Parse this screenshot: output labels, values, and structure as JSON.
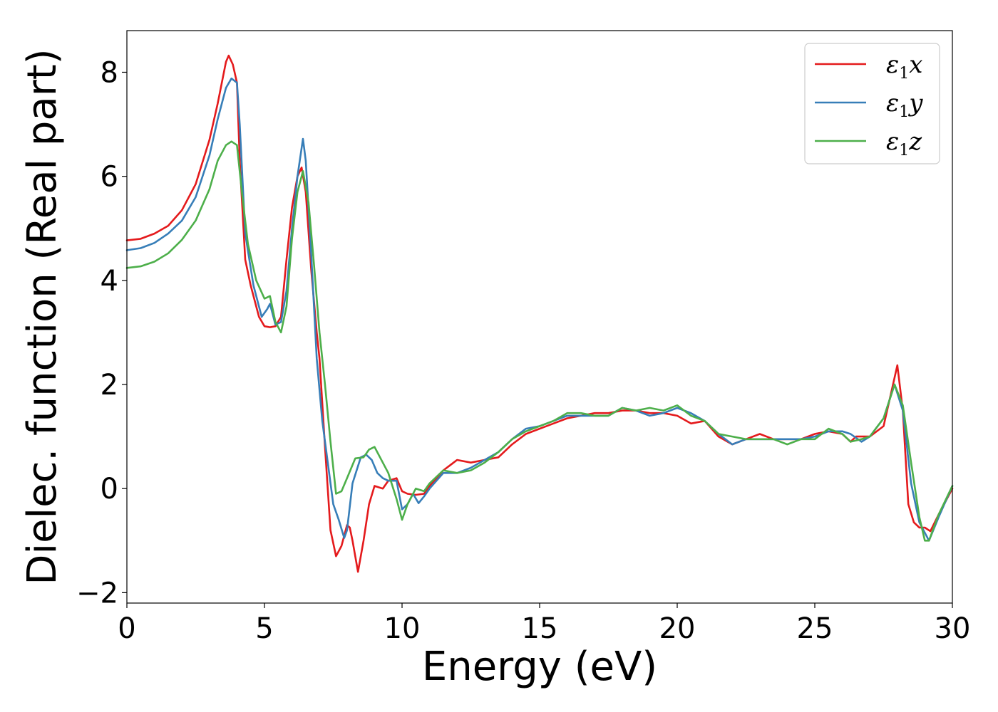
{
  "chart_data": {
    "type": "line",
    "title": "",
    "xlabel": "Energy (eV)",
    "ylabel": "Dielec. function (Real part)",
    "xlim": [
      0,
      30
    ],
    "ylim": [
      -2.2,
      8.8
    ],
    "x_ticks": [
      0,
      5,
      10,
      15,
      20,
      25,
      30
    ],
    "y_ticks": [
      -2,
      0,
      2,
      4,
      6,
      8
    ],
    "x_tick_labels": [
      "0",
      "5",
      "10",
      "15",
      "20",
      "25",
      "30"
    ],
    "y_tick_labels": [
      "−2",
      "0",
      "2",
      "4",
      "6",
      "8"
    ],
    "grid": false,
    "legend_position": "top-right",
    "series": [
      {
        "name": "ε1x",
        "legend_main": "ε",
        "legend_sub": "1",
        "legend_var": "x",
        "color": "#e41a1c",
        "x": [
          0,
          0.5,
          1,
          1.5,
          2,
          2.5,
          3,
          3.3,
          3.6,
          3.7,
          3.85,
          4.0,
          4.1,
          4.3,
          4.5,
          4.8,
          5.0,
          5.2,
          5.4,
          5.6,
          5.8,
          6.0,
          6.2,
          6.35,
          6.5,
          6.7,
          6.9,
          7.0,
          7.2,
          7.4,
          7.6,
          7.8,
          8.0,
          8.1,
          8.2,
          8.4,
          8.6,
          8.8,
          9.0,
          9.3,
          9.5,
          9.8,
          10.0,
          10.2,
          10.5,
          10.8,
          11.0,
          11.5,
          12.0,
          12.5,
          13.0,
          13.5,
          14.0,
          14.5,
          15.0,
          15.5,
          16.0,
          16.5,
          17.0,
          17.5,
          18.0,
          18.5,
          19.0,
          19.5,
          20.0,
          20.5,
          21.0,
          21.5,
          22.0,
          22.5,
          23.0,
          23.5,
          24.0,
          24.5,
          25.0,
          25.5,
          26.0,
          26.3,
          26.5,
          27.0,
          27.5,
          27.8,
          28.0,
          28.2,
          28.4,
          28.6,
          28.8,
          29.0,
          29.2,
          29.5,
          30.0
        ],
        "values": [
          4.77,
          4.8,
          4.9,
          5.05,
          5.35,
          5.85,
          6.7,
          7.4,
          8.2,
          8.32,
          8.15,
          7.8,
          6.3,
          4.4,
          3.9,
          3.3,
          3.12,
          3.1,
          3.12,
          3.3,
          4.4,
          5.4,
          6.0,
          6.17,
          5.7,
          4.2,
          3.0,
          2.5,
          0.8,
          -0.8,
          -1.3,
          -1.1,
          -0.7,
          -0.75,
          -1.0,
          -1.6,
          -1.0,
          -0.3,
          0.05,
          0.0,
          0.15,
          0.2,
          -0.05,
          -0.1,
          -0.12,
          -0.1,
          0.05,
          0.35,
          0.55,
          0.5,
          0.55,
          0.6,
          0.85,
          1.05,
          1.15,
          1.25,
          1.35,
          1.4,
          1.45,
          1.45,
          1.5,
          1.5,
          1.45,
          1.45,
          1.4,
          1.25,
          1.3,
          1.0,
          0.85,
          0.95,
          1.05,
          0.95,
          0.95,
          0.95,
          1.05,
          1.1,
          1.05,
          0.9,
          1.0,
          1.0,
          1.2,
          1.9,
          2.37,
          1.5,
          -0.3,
          -0.65,
          -0.75,
          -0.75,
          -0.82,
          -0.5,
          0.0
        ]
      },
      {
        "name": "ε1y",
        "legend_main": "ε",
        "legend_sub": "1",
        "legend_var": "y",
        "color": "#377eb8",
        "x": [
          0,
          0.5,
          1,
          1.5,
          2,
          2.5,
          3,
          3.3,
          3.6,
          3.8,
          4.0,
          4.1,
          4.3,
          4.6,
          4.9,
          5.1,
          5.2,
          5.4,
          5.6,
          5.8,
          6.0,
          6.2,
          6.4,
          6.5,
          6.7,
          6.9,
          7.1,
          7.3,
          7.5,
          7.7,
          7.9,
          8.0,
          8.2,
          8.5,
          8.7,
          8.9,
          9.1,
          9.3,
          9.5,
          9.8,
          10.0,
          10.2,
          10.4,
          10.6,
          10.8,
          11.0,
          11.5,
          12.0,
          12.5,
          13.0,
          13.5,
          14.0,
          14.5,
          15.0,
          15.5,
          16.0,
          16.5,
          17.0,
          17.5,
          18.0,
          18.5,
          19.0,
          19.5,
          20.0,
          20.5,
          21.0,
          21.5,
          22.0,
          22.5,
          23.0,
          23.5,
          24.0,
          24.5,
          25.0,
          25.5,
          26.0,
          26.3,
          26.7,
          27.0,
          27.5,
          27.9,
          28.2,
          28.5,
          28.8,
          29.0,
          29.15,
          29.5,
          30.0
        ],
        "values": [
          4.58,
          4.62,
          4.72,
          4.9,
          5.15,
          5.6,
          6.4,
          7.1,
          7.7,
          7.88,
          7.8,
          7.0,
          4.9,
          3.9,
          3.3,
          3.45,
          3.55,
          3.15,
          3.2,
          3.8,
          5.0,
          6.0,
          6.72,
          6.3,
          4.5,
          2.5,
          1.3,
          0.5,
          -0.3,
          -0.6,
          -0.95,
          -0.8,
          0.1,
          0.6,
          0.65,
          0.55,
          0.3,
          0.2,
          0.15,
          0.15,
          -0.4,
          -0.3,
          -0.1,
          -0.28,
          -0.15,
          0.0,
          0.3,
          0.3,
          0.4,
          0.55,
          0.7,
          0.95,
          1.15,
          1.2,
          1.3,
          1.4,
          1.4,
          1.4,
          1.4,
          1.55,
          1.5,
          1.4,
          1.45,
          1.55,
          1.45,
          1.3,
          1.05,
          0.85,
          0.95,
          0.95,
          0.95,
          0.95,
          0.95,
          1.0,
          1.1,
          1.1,
          1.05,
          0.9,
          1.0,
          1.35,
          2.0,
          1.5,
          0.1,
          -0.65,
          -0.85,
          -1.0,
          -0.55,
          0.05
        ]
      },
      {
        "name": "ε1z",
        "legend_main": "ε",
        "legend_sub": "1",
        "legend_var": "z",
        "color": "#4daf4a",
        "x": [
          0,
          0.5,
          1,
          1.5,
          2,
          2.5,
          3,
          3.3,
          3.6,
          3.8,
          4.0,
          4.2,
          4.4,
          4.7,
          5.0,
          5.2,
          5.4,
          5.6,
          5.8,
          6.0,
          6.2,
          6.4,
          6.6,
          6.8,
          7.0,
          7.2,
          7.4,
          7.6,
          7.8,
          8.0,
          8.3,
          8.6,
          8.8,
          9.0,
          9.2,
          9.5,
          9.8,
          10.0,
          10.2,
          10.5,
          10.8,
          11.0,
          11.5,
          12.0,
          12.5,
          13.0,
          13.5,
          14.0,
          14.5,
          15.0,
          15.5,
          16.0,
          16.5,
          17.0,
          17.5,
          18.0,
          18.5,
          19.0,
          19.5,
          20.0,
          20.5,
          21.0,
          21.5,
          22.0,
          22.5,
          23.0,
          23.5,
          24.0,
          24.5,
          25.0,
          25.5,
          26.0,
          26.3,
          26.7,
          27.0,
          27.5,
          27.9,
          28.2,
          28.5,
          28.8,
          29.0,
          29.15,
          29.5,
          30.0
        ],
        "values": [
          4.24,
          4.27,
          4.36,
          4.52,
          4.78,
          5.15,
          5.75,
          6.3,
          6.6,
          6.67,
          6.6,
          5.6,
          4.7,
          4.0,
          3.65,
          3.7,
          3.2,
          3.0,
          3.5,
          4.8,
          5.7,
          6.1,
          5.5,
          4.3,
          3.0,
          2.0,
          0.9,
          -0.1,
          -0.05,
          0.2,
          0.58,
          0.6,
          0.75,
          0.8,
          0.6,
          0.3,
          -0.2,
          -0.6,
          -0.3,
          0.0,
          -0.05,
          0.1,
          0.35,
          0.3,
          0.35,
          0.5,
          0.7,
          0.95,
          1.1,
          1.2,
          1.3,
          1.45,
          1.45,
          1.4,
          1.4,
          1.55,
          1.5,
          1.55,
          1.5,
          1.6,
          1.4,
          1.3,
          1.05,
          1.0,
          0.95,
          0.95,
          0.95,
          0.85,
          0.95,
          0.95,
          1.15,
          1.05,
          0.9,
          0.95,
          1.0,
          1.35,
          2.0,
          1.6,
          0.5,
          -0.55,
          -1.0,
          -1.0,
          -0.5,
          0.05
        ]
      }
    ]
  }
}
